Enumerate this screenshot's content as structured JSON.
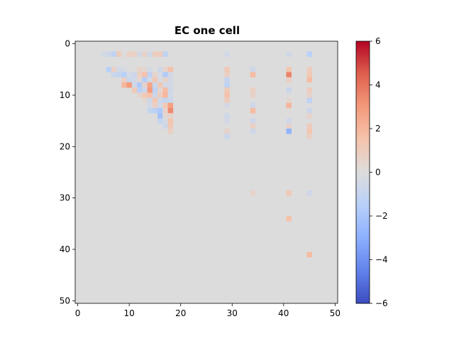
{
  "chart_data": {
    "type": "heatmap",
    "title": "EC one cell",
    "rows": 51,
    "cols": 51,
    "x_ticks": [
      0,
      10,
      20,
      30,
      40,
      50
    ],
    "y_ticks": [
      0,
      10,
      20,
      30,
      40,
      50
    ],
    "colorbar": {
      "colormap": "coolwarm",
      "vmin": -6,
      "vmax": 6,
      "ticks": [
        -6,
        -4,
        -2,
        0,
        2,
        4,
        6
      ]
    },
    "background_value": 0,
    "cells": [
      [
        2,
        5,
        -0.4
      ],
      [
        2,
        6,
        -0.6
      ],
      [
        2,
        7,
        -1.2
      ],
      [
        2,
        8,
        1.0
      ],
      [
        2,
        10,
        0.8
      ],
      [
        2,
        11,
        0.8
      ],
      [
        2,
        12,
        -0.4
      ],
      [
        2,
        13,
        0.6
      ],
      [
        2,
        14,
        -0.6
      ],
      [
        2,
        15,
        1.0
      ],
      [
        2,
        16,
        1.0
      ],
      [
        2,
        17,
        -1.2
      ],
      [
        5,
        6,
        -1.5
      ],
      [
        5,
        7,
        0.8
      ],
      [
        5,
        8,
        -0.5
      ],
      [
        5,
        9,
        -0.3
      ],
      [
        5,
        12,
        0.6
      ],
      [
        5,
        13,
        0.4
      ],
      [
        5,
        14,
        -0.4
      ],
      [
        5,
        16,
        -0.6
      ],
      [
        5,
        17,
        0.5
      ],
      [
        5,
        18,
        1.6
      ],
      [
        6,
        7,
        -0.8
      ],
      [
        6,
        8,
        -1.0
      ],
      [
        6,
        9,
        -1.5
      ],
      [
        6,
        10,
        -0.4
      ],
      [
        6,
        11,
        -0.7
      ],
      [
        6,
        12,
        0.8
      ],
      [
        6,
        13,
        1.6
      ],
      [
        6,
        14,
        -1.2
      ],
      [
        6,
        15,
        0.6
      ],
      [
        6,
        16,
        -0.3
      ],
      [
        6,
        17,
        -1.8
      ],
      [
        6,
        18,
        -0.5
      ],
      [
        7,
        9,
        0.8
      ],
      [
        7,
        10,
        -0.8
      ],
      [
        7,
        11,
        -0.5
      ],
      [
        7,
        12,
        0.4
      ],
      [
        7,
        13,
        -1.6
      ],
      [
        7,
        14,
        -0.4
      ],
      [
        7,
        15,
        1.2
      ],
      [
        7,
        16,
        -0.3
      ],
      [
        7,
        17,
        0.6
      ],
      [
        7,
        18,
        -0.4
      ],
      [
        8,
        9,
        2.0
      ],
      [
        8,
        10,
        3.0
      ],
      [
        8,
        11,
        -0.6
      ],
      [
        8,
        12,
        -1.8
      ],
      [
        8,
        13,
        0.6
      ],
      [
        8,
        14,
        2.6
      ],
      [
        8,
        15,
        -0.8
      ],
      [
        8,
        16,
        1.2
      ],
      [
        8,
        17,
        -0.4
      ],
      [
        8,
        18,
        -0.4
      ],
      [
        9,
        11,
        1.2
      ],
      [
        9,
        12,
        -1.4
      ],
      [
        9,
        13,
        -0.6
      ],
      [
        9,
        14,
        3.0
      ],
      [
        9,
        15,
        -1.2
      ],
      [
        9,
        16,
        0.4
      ],
      [
        9,
        17,
        1.8
      ],
      [
        9,
        18,
        -0.6
      ],
      [
        10,
        12,
        0.5
      ],
      [
        10,
        13,
        1.2
      ],
      [
        10,
        14,
        1.6
      ],
      [
        10,
        15,
        -0.8
      ],
      [
        10,
        16,
        1.0
      ],
      [
        10,
        17,
        2.0
      ],
      [
        10,
        18,
        -0.5
      ],
      [
        11,
        13,
        0.4
      ],
      [
        11,
        14,
        -0.6
      ],
      [
        11,
        15,
        1.4
      ],
      [
        11,
        16,
        -0.6
      ],
      [
        11,
        17,
        -1.0
      ],
      [
        11,
        18,
        -0.8
      ],
      [
        12,
        14,
        -0.4
      ],
      [
        12,
        15,
        0.8
      ],
      [
        12,
        16,
        -0.5
      ],
      [
        12,
        17,
        1.2
      ],
      [
        12,
        18,
        2.8
      ],
      [
        13,
        14,
        -1.0
      ],
      [
        13,
        15,
        -1.4
      ],
      [
        13,
        16,
        -1.8
      ],
      [
        13,
        17,
        0.6
      ],
      [
        13,
        18,
        3.4
      ],
      [
        14,
        16,
        -2.2
      ],
      [
        14,
        17,
        0.4
      ],
      [
        14,
        18,
        0.5
      ],
      [
        15,
        16,
        -1.0
      ],
      [
        15,
        17,
        -0.4
      ],
      [
        15,
        18,
        1.4
      ],
      [
        16,
        17,
        -0.6
      ],
      [
        16,
        18,
        1.2
      ],
      [
        17,
        18,
        0.8
      ],
      [
        2,
        29,
        -0.5
      ],
      [
        5,
        29,
        1.2
      ],
      [
        6,
        29,
        0.8
      ],
      [
        7,
        29,
        -1.0
      ],
      [
        8,
        29,
        -1.2
      ],
      [
        9,
        29,
        1.2
      ],
      [
        10,
        29,
        1.6
      ],
      [
        11,
        29,
        1.0
      ],
      [
        12,
        29,
        -0.4
      ],
      [
        14,
        29,
        -0.6
      ],
      [
        15,
        29,
        -0.4
      ],
      [
        17,
        29,
        0.6
      ],
      [
        18,
        29,
        -0.8
      ],
      [
        5,
        34,
        -0.6
      ],
      [
        6,
        34,
        1.8
      ],
      [
        9,
        34,
        0.8
      ],
      [
        10,
        34,
        0.6
      ],
      [
        12,
        34,
        -0.6
      ],
      [
        13,
        34,
        1.8
      ],
      [
        15,
        34,
        -0.6
      ],
      [
        16,
        34,
        0.8
      ],
      [
        17,
        34,
        -0.6
      ],
      [
        29,
        34,
        0.6
      ],
      [
        2,
        41,
        -0.6
      ],
      [
        5,
        41,
        1.4
      ],
      [
        6,
        41,
        3.6
      ],
      [
        7,
        41,
        0.8
      ],
      [
        9,
        41,
        -0.8
      ],
      [
        11,
        41,
        0.4
      ],
      [
        12,
        41,
        2.0
      ],
      [
        15,
        41,
        -0.6
      ],
      [
        16,
        41,
        0.6
      ],
      [
        17,
        41,
        -2.8
      ],
      [
        29,
        41,
        1.2
      ],
      [
        34,
        41,
        1.6
      ],
      [
        2,
        45,
        -1.4
      ],
      [
        5,
        45,
        1.0
      ],
      [
        6,
        45,
        1.2
      ],
      [
        7,
        45,
        1.8
      ],
      [
        9,
        45,
        1.0
      ],
      [
        10,
        45,
        0.6
      ],
      [
        11,
        45,
        -1.2
      ],
      [
        13,
        45,
        -0.8
      ],
      [
        14,
        45,
        0.6
      ],
      [
        16,
        45,
        1.0
      ],
      [
        17,
        45,
        1.4
      ],
      [
        18,
        45,
        0.8
      ],
      [
        29,
        45,
        -0.6
      ],
      [
        41,
        45,
        1.8
      ]
    ]
  }
}
